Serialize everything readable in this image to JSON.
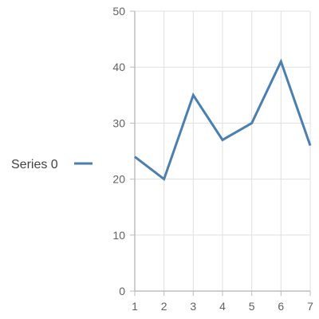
{
  "chart_data": {
    "type": "line",
    "x": [
      1,
      2,
      3,
      4,
      5,
      6,
      7
    ],
    "series": [
      {
        "name": "Series 0",
        "values": [
          24,
          20,
          35,
          27,
          30,
          41,
          26
        ]
      }
    ],
    "xlim": [
      1,
      7
    ],
    "ylim": [
      0,
      50
    ],
    "x_ticks": [
      "1",
      "2",
      "3",
      "4",
      "5",
      "6",
      "7"
    ],
    "y_ticks": [
      "0",
      "10",
      "20",
      "30",
      "40",
      "50"
    ],
    "grid": true,
    "legend_position": "left",
    "colors": {
      "series": "#4a7fb0",
      "grid": "#e0e0e0",
      "axis": "#bdbdbd"
    }
  }
}
